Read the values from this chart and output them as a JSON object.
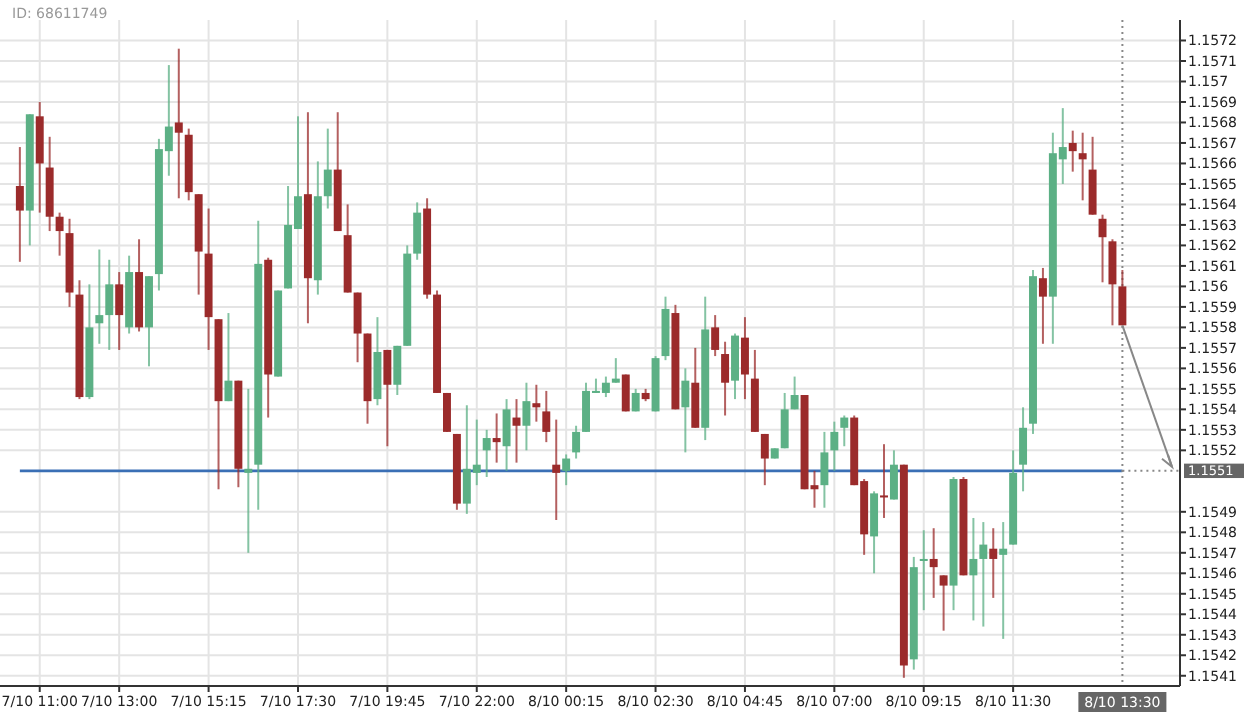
{
  "chart_data": {
    "type": "candlestick",
    "annotations": [
      "ID: 68611749"
    ],
    "colors": [
      "#9b2b2b",
      "#5cb085",
      "#9b2b2b",
      "#9b2b2b",
      "#9b2b2b",
      "#9b2b2b",
      "#9b2b2b",
      "#5cb085",
      "#5cb085",
      "#5cb085",
      "#9b2b2b",
      "#5cb085",
      "#9b2b2b",
      "#5cb085",
      "#5cb085",
      "#5cb085",
      "#9b2b2b",
      "#9b2b2b",
      "#9b2b2b",
      "#9b2b2b",
      "#9b2b2b",
      "#5cb085",
      "#9b2b2b",
      "#5cb085",
      "#5cb085",
      "#9b2b2b",
      "#5cb085",
      "#5cb085",
      "#5cb085",
      "#9b2b2b",
      "#5cb085",
      "#5cb085",
      "#9b2b2b",
      "#9b2b2b",
      "#9b2b2b",
      "#9b2b2b",
      "#5cb085",
      "#9b2b2b",
      "#5cb085",
      "#5cb085",
      "#5cb085",
      "#9b2b2b",
      "#9b2b2b",
      "#9b2b2b",
      "#9b2b2b",
      "#5cb085",
      "#5cb085",
      "#5cb085",
      "#9b2b2b",
      "#5cb085",
      "#9b2b2b",
      "#5cb085",
      "#9b2b2b",
      "#9b2b2b",
      "#9b2b2b",
      "#5cb085",
      "#5cb085",
      "#5cb085",
      "#5cb085",
      "#5cb085",
      "#5cb085",
      "#9b2b2b",
      "#5cb085",
      "#9b2b2b",
      "#5cb085",
      "#5cb085",
      "#9b2b2b",
      "#5cb085",
      "#9b2b2b",
      "#5cb085",
      "#9b2b2b",
      "#9b2b2b",
      "#5cb085",
      "#9b2b2b",
      "#9b2b2b",
      "#9b2b2b",
      "#5cb085",
      "#5cb085",
      "#5cb085",
      "#9b2b2b",
      "#9b2b2b",
      "#5cb085",
      "#5cb085",
      "#5cb085",
      "#9b2b2b",
      "#9b2b2b",
      "#5cb085",
      "#9b2b2b",
      "#5cb085",
      "#9b2b2b",
      "#5cb085",
      "#5cb085",
      "#9b2b2b",
      "#9b2b2b",
      "#5cb085",
      "#9b2b2b",
      "#5cb085",
      "#5cb085",
      "#9b2b2b",
      "#5cb085",
      "#5cb085",
      "#5cb085",
      "#5cb085",
      "#9b2b2b",
      "#5cb085",
      "#5cb085",
      "#9b2b2b",
      "#9b2b2b",
      "#9b2b2b",
      "#9b2b2b",
      "#9b2b2b",
      "#9b2b2b"
    ],
    "grid": true,
    "ylim": [
      1.15405,
      1.1573
    ],
    "yticks": [
      1.1541,
      1.1542,
      1.1543,
      1.1544,
      1.1545,
      1.1546,
      1.1547,
      1.1548,
      1.1549,
      1.1552,
      1.1553,
      1.1554,
      1.1555,
      1.1556,
      1.1557,
      1.1558,
      1.1559,
      1.156,
      1.1561,
      1.1562,
      1.1563,
      1.1564,
      1.1565,
      1.1566,
      1.1567,
      1.1568,
      1.1569,
      1.157,
      1.1571,
      1.1572
    ],
    "ref_lines": [
      {
        "axis": "y",
        "value": 1.1551,
        "label": "1.1551",
        "color": "#3a6fb5"
      },
      {
        "axis": "x",
        "value": "8/10 13:30",
        "color": "#888888",
        "line_style": "dotted"
      }
    ],
    "categories": [
      null,
      null,
      "7/10 11:00",
      null,
      null,
      null,
      null,
      null,
      null,
      null,
      "7/10 13:00",
      null,
      null,
      null,
      null,
      null,
      null,
      null,
      null,
      "7/10 15:15",
      null,
      null,
      null,
      null,
      null,
      null,
      null,
      null,
      "7/10 17:30",
      null,
      null,
      null,
      null,
      null,
      null,
      null,
      null,
      "7/10 19:45",
      null,
      null,
      null,
      null,
      null,
      null,
      null,
      null,
      "7/10 22:00",
      null,
      null,
      null,
      null,
      null,
      null,
      null,
      null,
      "8/10 00:15",
      null,
      null,
      null,
      null,
      null,
      null,
      null,
      null,
      "8/10 02:30",
      null,
      null,
      null,
      null,
      null,
      null,
      null,
      null,
      "8/10 04:45",
      null,
      null,
      null,
      null,
      null,
      null,
      null,
      null,
      "8/10 07:00",
      null,
      null,
      null,
      null,
      null,
      null,
      null,
      null,
      "8/10 09:15",
      null,
      null,
      null,
      null,
      null,
      null,
      null,
      null,
      "8/10 11:30",
      null,
      null,
      null,
      null,
      null,
      null,
      null,
      null,
      null,
      null,
      "8/10 13:30"
    ],
    "ohlc": [
      [
        1.15649,
        1.15668,
        1.15612,
        1.15637
      ],
      [
        1.15637,
        1.15684,
        1.1562,
        1.15684
      ],
      [
        1.15683,
        1.1569,
        1.15636,
        1.1566
      ],
      [
        1.15658,
        1.15673,
        1.15627,
        1.15634
      ],
      [
        1.15634,
        1.15636,
        1.15615,
        1.15627
      ],
      [
        1.15626,
        1.15633,
        1.1559,
        1.15597
      ],
      [
        1.15596,
        1.15603,
        1.15545,
        1.15546
      ],
      [
        1.15546,
        1.15601,
        1.15545,
        1.1558
      ],
      [
        1.15582,
        1.15618,
        1.15572,
        1.15586
      ],
      [
        1.15586,
        1.15613,
        1.15569,
        1.15601
      ],
      [
        1.15601,
        1.15607,
        1.15569,
        1.15586
      ],
      [
        1.1558,
        1.15615,
        1.15577,
        1.15607
      ],
      [
        1.15607,
        1.15623,
        1.15578,
        1.1558
      ],
      [
        1.1558,
        1.15605,
        1.15561,
        1.15605
      ],
      [
        1.15606,
        1.15672,
        1.15598,
        1.15667
      ],
      [
        1.15666,
        1.15708,
        1.15654,
        1.15678
      ],
      [
        1.1568,
        1.15716,
        1.15643,
        1.15675
      ],
      [
        1.15674,
        1.15677,
        1.15642,
        1.15646
      ],
      [
        1.15645,
        1.15645,
        1.15596,
        1.15617
      ],
      [
        1.15616,
        1.15638,
        1.15569,
        1.15585
      ],
      [
        1.15584,
        1.15584,
        1.15501,
        1.15544
      ],
      [
        1.15544,
        1.15587,
        1.15544,
        1.15554
      ],
      [
        1.15554,
        1.15554,
        1.15502,
        1.15511
      ],
      [
        1.15509,
        1.1555,
        1.1547,
        1.15511
      ],
      [
        1.15513,
        1.15632,
        1.15491,
        1.15611
      ],
      [
        1.15613,
        1.15614,
        1.15536,
        1.15557
      ],
      [
        1.15556,
        1.15598,
        1.15556,
        1.15598
      ],
      [
        1.15599,
        1.15649,
        1.15599,
        1.1563
      ],
      [
        1.15628,
        1.15683,
        1.15628,
        1.15644
      ],
      [
        1.15645,
        1.15685,
        1.15582,
        1.15604
      ],
      [
        1.15603,
        1.15661,
        1.15596,
        1.15644
      ],
      [
        1.15644,
        1.15677,
        1.15638,
        1.15657
      ],
      [
        1.15657,
        1.15685,
        1.15627,
        1.15627
      ],
      [
        1.15625,
        1.1564,
        1.15597,
        1.15597
      ],
      [
        1.15597,
        1.15597,
        1.15563,
        1.15577
      ],
      [
        1.15577,
        1.15577,
        1.15533,
        1.15544
      ],
      [
        1.15545,
        1.15585,
        1.15542,
        1.15568
      ],
      [
        1.15569,
        1.15569,
        1.15522,
        1.15552
      ],
      [
        1.15552,
        1.15571,
        1.15547,
        1.15571
      ],
      [
        1.15571,
        1.1562,
        1.15571,
        1.15616
      ],
      [
        1.15616,
        1.15641,
        1.15613,
        1.15636
      ],
      [
        1.15638,
        1.15643,
        1.15594,
        1.15596
      ],
      [
        1.15596,
        1.15598,
        1.15548,
        1.15548
      ],
      [
        1.15548,
        1.15548,
        1.15529,
        1.15529
      ],
      [
        1.15528,
        1.15528,
        1.15491,
        1.15494
      ],
      [
        1.15494,
        1.15542,
        1.15489,
        1.15511
      ],
      [
        1.15509,
        1.15535,
        1.15503,
        1.15513
      ],
      [
        1.1552,
        1.1553,
        1.15507,
        1.15526
      ],
      [
        1.15526,
        1.15538,
        1.15514,
        1.15524
      ],
      [
        1.15522,
        1.15545,
        1.1551,
        1.1554
      ],
      [
        1.15536,
        1.15545,
        1.15514,
        1.15532
      ],
      [
        1.15532,
        1.15553,
        1.1552,
        1.15544
      ],
      [
        1.15543,
        1.15552,
        1.15534,
        1.15541
      ],
      [
        1.15539,
        1.15549,
        1.15524,
        1.15529
      ],
      [
        1.15513,
        1.15535,
        1.15486,
        1.15509
      ],
      [
        1.1551,
        1.15518,
        1.15503,
        1.15516
      ],
      [
        1.15519,
        1.15532,
        1.15516,
        1.15529
      ],
      [
        1.15529,
        1.15553,
        1.15529,
        1.15549
      ],
      [
        1.15548,
        1.15555,
        1.15548,
        1.15549
      ],
      [
        1.15548,
        1.15556,
        1.15546,
        1.15553
      ],
      [
        1.15553,
        1.15565,
        1.15553,
        1.15555
      ],
      [
        1.15557,
        1.15557,
        1.15539,
        1.15539
      ],
      [
        1.15539,
        1.1555,
        1.15539,
        1.15548
      ],
      [
        1.15548,
        1.1555,
        1.15544,
        1.15545
      ],
      [
        1.15539,
        1.15566,
        1.15539,
        1.15565
      ],
      [
        1.15566,
        1.15595,
        1.15564,
        1.15589
      ],
      [
        1.15587,
        1.15591,
        1.1554,
        1.1554
      ],
      [
        1.15541,
        1.1556,
        1.15519,
        1.15554
      ],
      [
        1.15553,
        1.1557,
        1.15531,
        1.15531
      ],
      [
        1.15531,
        1.15595,
        1.15525,
        1.15579
      ],
      [
        1.1558,
        1.15586,
        1.15566,
        1.15569
      ],
      [
        1.15567,
        1.15573,
        1.15537,
        1.15553
      ],
      [
        1.15554,
        1.15577,
        1.15545,
        1.15576
      ],
      [
        1.15575,
        1.15585,
        1.15545,
        1.15557
      ],
      [
        1.15555,
        1.15569,
        1.15529,
        1.15529
      ],
      [
        1.15528,
        1.15528,
        1.15503,
        1.15516
      ],
      [
        1.15516,
        1.15521,
        1.15516,
        1.15521
      ],
      [
        1.15521,
        1.15548,
        1.15521,
        1.1554
      ],
      [
        1.1554,
        1.15556,
        1.1554,
        1.15547
      ],
      [
        1.15547,
        1.15547,
        1.15501,
        1.15501
      ],
      [
        1.15503,
        1.1551,
        1.15492,
        1.15501
      ],
      [
        1.15503,
        1.15529,
        1.15492,
        1.15519
      ],
      [
        1.1552,
        1.15534,
        1.1551,
        1.15529
      ],
      [
        1.15531,
        1.15537,
        1.15522,
        1.15536
      ],
      [
        1.15536,
        1.15537,
        1.15503,
        1.15503
      ],
      [
        1.15505,
        1.15506,
        1.15469,
        1.15479
      ],
      [
        1.15478,
        1.155,
        1.1546,
        1.15499
      ],
      [
        1.15498,
        1.15523,
        1.15487,
        1.15497
      ],
      [
        1.15496,
        1.1552,
        1.15496,
        1.15513
      ],
      [
        1.15513,
        1.15513,
        1.15409,
        1.15415
      ],
      [
        1.15418,
        1.15468,
        1.15413,
        1.15463
      ],
      [
        1.15466,
        1.15481,
        1.15442,
        1.15467
      ],
      [
        1.15467,
        1.15482,
        1.15448,
        1.15463
      ],
      [
        1.15459,
        1.15459,
        1.15432,
        1.15454
      ],
      [
        1.15454,
        1.15507,
        1.15442,
        1.15506
      ],
      [
        1.15506,
        1.15507,
        1.15459,
        1.15459
      ],
      [
        1.15459,
        1.15487,
        1.15437,
        1.15467
      ],
      [
        1.15467,
        1.15485,
        1.15434,
        1.15474
      ],
      [
        1.15472,
        1.15482,
        1.15448,
        1.15467
      ],
      [
        1.15469,
        1.15485,
        1.15428,
        1.15472
      ],
      [
        1.15474,
        1.1552,
        1.15474,
        1.15509
      ],
      [
        1.15513,
        1.15541,
        1.155,
        1.15531
      ],
      [
        1.15533,
        1.15608,
        1.15528,
        1.15605
      ],
      [
        1.15604,
        1.15609,
        1.15572,
        1.15595
      ],
      [
        1.15595,
        1.15675,
        1.15572,
        1.15665
      ],
      [
        1.15662,
        1.15687,
        1.1565,
        1.15668
      ],
      [
        1.1567,
        1.15676,
        1.15656,
        1.15666
      ],
      [
        1.15665,
        1.15675,
        1.15642,
        1.15662
      ],
      [
        1.15657,
        1.15673,
        1.15635,
        1.15635
      ],
      [
        1.15633,
        1.15635,
        1.15602,
        1.15624
      ],
      [
        1.15622,
        1.15623,
        1.15581,
        1.15601
      ],
      [
        1.156,
        1.15608,
        1.15581,
        1.15581
      ]
    ]
  }
}
